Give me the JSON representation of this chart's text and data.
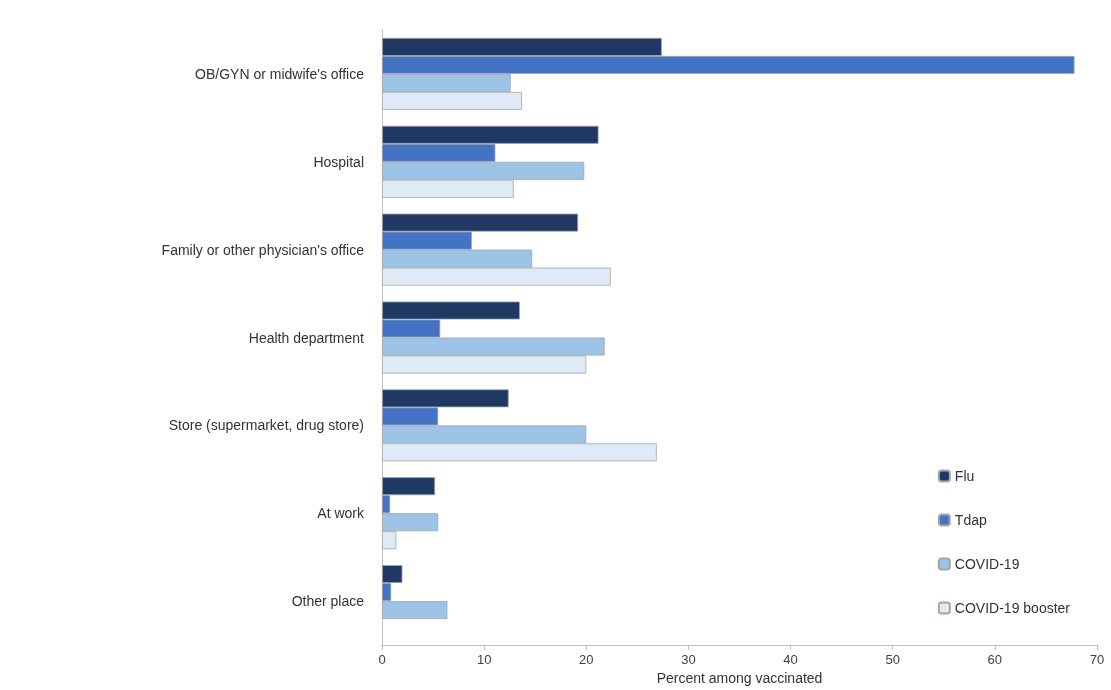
{
  "chart_data": {
    "type": "bar",
    "orientation": "horizontal",
    "xlabel": "Percent among vaccinated",
    "categories": [
      "OB/GYN or midwife's office",
      "Hospital",
      "Family or other physician's office",
      "Health department",
      "Store (supermarket, drug store)",
      "At work",
      "Other place"
    ],
    "series": [
      {
        "name": "Flu",
        "color": "#1f3864",
        "values": [
          27.4,
          21.2,
          19.2,
          13.5,
          12.4,
          5.2,
          2.0
        ]
      },
      {
        "name": "Tdap",
        "color": "#4472c4",
        "values": [
          67.8,
          11.1,
          8.8,
          5.7,
          5.5,
          0.8,
          0.9
        ]
      },
      {
        "name": "COVID-19",
        "color": "#9dc3e6",
        "values": [
          12.6,
          19.8,
          14.7,
          21.8,
          20.0,
          5.5,
          6.4
        ]
      },
      {
        "name": "COVID-19 booster",
        "color": "#deebf7",
        "values": [
          13.7,
          12.9,
          22.4,
          20.0,
          26.9,
          1.4,
          null
        ]
      }
    ],
    "xlim": [
      0,
      70
    ],
    "xticks": [
      0,
      10,
      20,
      30,
      40,
      50,
      60,
      70
    ],
    "grid": false,
    "legend": "bottom right"
  }
}
